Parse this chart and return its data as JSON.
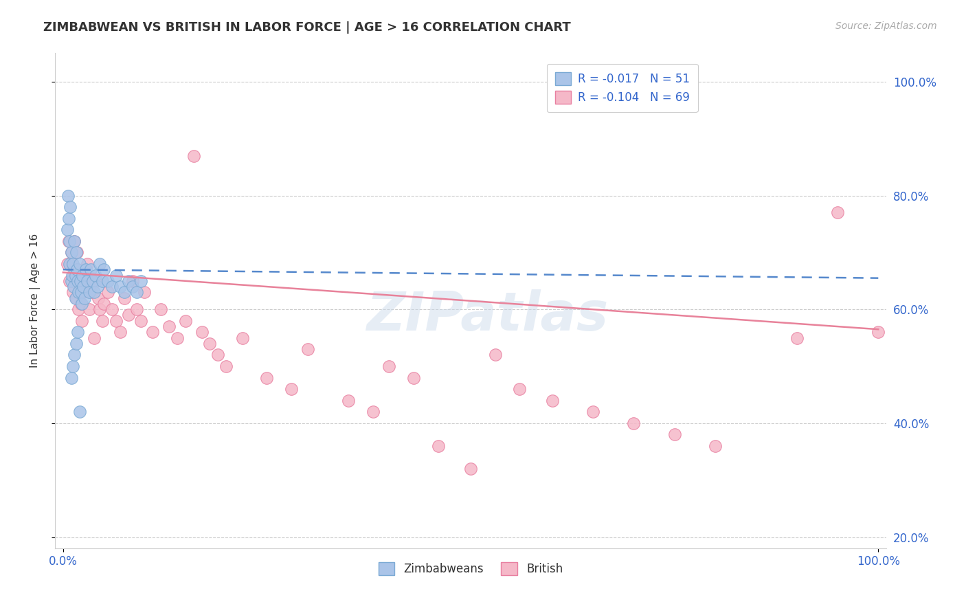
{
  "title": "ZIMBABWEAN VS BRITISH IN LABOR FORCE | AGE > 16 CORRELATION CHART",
  "source_text": "Source: ZipAtlas.com",
  "ylabel": "In Labor Force | Age > 16",
  "xlim": [
    -0.01,
    1.01
  ],
  "ylim": [
    0.18,
    1.05
  ],
  "xtick_positions": [
    0.0,
    1.0
  ],
  "xtick_labels": [
    "0.0%",
    "100.0%"
  ],
  "ytick_positions": [
    0.2,
    0.4,
    0.6,
    0.8,
    1.0
  ],
  "ytick_labels": [
    "20.0%",
    "40.0%",
    "60.0%",
    "80.0%",
    "100.0%"
  ],
  "grid_color": "#cccccc",
  "background_color": "#ffffff",
  "legend_labels": [
    "Zimbabweans",
    "British"
  ],
  "zimbabwean_color": "#aac4e8",
  "british_color": "#f5b8c8",
  "zimbabwean_edge": "#7baad4",
  "british_edge": "#e87fa0",
  "trend_zimbabwean_color": "#5588cc",
  "trend_british_color": "#e8829a",
  "watermark": "ZIPatlas",
  "legend_r_zimbabwean": "-0.017",
  "legend_n_zimbabwean": "51",
  "legend_r_british": "-0.104",
  "legend_n_british": "69",
  "zim_x": [
    0.005,
    0.006,
    0.007,
    0.008,
    0.008,
    0.009,
    0.01,
    0.01,
    0.011,
    0.012,
    0.013,
    0.014,
    0.015,
    0.015,
    0.016,
    0.017,
    0.018,
    0.019,
    0.02,
    0.021,
    0.022,
    0.023,
    0.024,
    0.025,
    0.026,
    0.028,
    0.03,
    0.032,
    0.034,
    0.036,
    0.038,
    0.04,
    0.042,
    0.045,
    0.048,
    0.05,
    0.055,
    0.06,
    0.065,
    0.07,
    0.075,
    0.08,
    0.085,
    0.09,
    0.095,
    0.01,
    0.012,
    0.014,
    0.016,
    0.018,
    0.02
  ],
  "zim_y": [
    0.74,
    0.8,
    0.76,
    0.72,
    0.68,
    0.78,
    0.7,
    0.65,
    0.66,
    0.68,
    0.64,
    0.72,
    0.66,
    0.62,
    0.7,
    0.67,
    0.65,
    0.63,
    0.68,
    0.65,
    0.63,
    0.61,
    0.66,
    0.64,
    0.62,
    0.67,
    0.65,
    0.63,
    0.67,
    0.65,
    0.63,
    0.66,
    0.64,
    0.68,
    0.65,
    0.67,
    0.65,
    0.64,
    0.66,
    0.64,
    0.63,
    0.65,
    0.64,
    0.63,
    0.65,
    0.48,
    0.5,
    0.52,
    0.54,
    0.56,
    0.42
  ],
  "brit_x": [
    0.005,
    0.007,
    0.008,
    0.01,
    0.011,
    0.012,
    0.013,
    0.014,
    0.015,
    0.016,
    0.017,
    0.018,
    0.019,
    0.02,
    0.021,
    0.022,
    0.023,
    0.024,
    0.025,
    0.027,
    0.03,
    0.032,
    0.035,
    0.038,
    0.04,
    0.043,
    0.045,
    0.048,
    0.05,
    0.055,
    0.06,
    0.065,
    0.07,
    0.075,
    0.08,
    0.085,
    0.09,
    0.095,
    0.1,
    0.11,
    0.12,
    0.13,
    0.14,
    0.15,
    0.16,
    0.17,
    0.18,
    0.19,
    0.2,
    0.22,
    0.25,
    0.28,
    0.3,
    0.35,
    0.38,
    0.4,
    0.43,
    0.46,
    0.5,
    0.53,
    0.56,
    0.6,
    0.65,
    0.7,
    0.75,
    0.8,
    0.9,
    0.95,
    1.0
  ],
  "brit_y": [
    0.68,
    0.72,
    0.65,
    0.7,
    0.68,
    0.63,
    0.66,
    0.72,
    0.65,
    0.62,
    0.7,
    0.67,
    0.6,
    0.65,
    0.63,
    0.61,
    0.58,
    0.66,
    0.63,
    0.65,
    0.68,
    0.6,
    0.63,
    0.55,
    0.65,
    0.62,
    0.6,
    0.58,
    0.61,
    0.63,
    0.6,
    0.58,
    0.56,
    0.62,
    0.59,
    0.65,
    0.6,
    0.58,
    0.63,
    0.56,
    0.6,
    0.57,
    0.55,
    0.58,
    0.87,
    0.56,
    0.54,
    0.52,
    0.5,
    0.55,
    0.48,
    0.46,
    0.53,
    0.44,
    0.42,
    0.5,
    0.48,
    0.36,
    0.32,
    0.52,
    0.46,
    0.44,
    0.42,
    0.4,
    0.38,
    0.36,
    0.55,
    0.77,
    0.56
  ]
}
